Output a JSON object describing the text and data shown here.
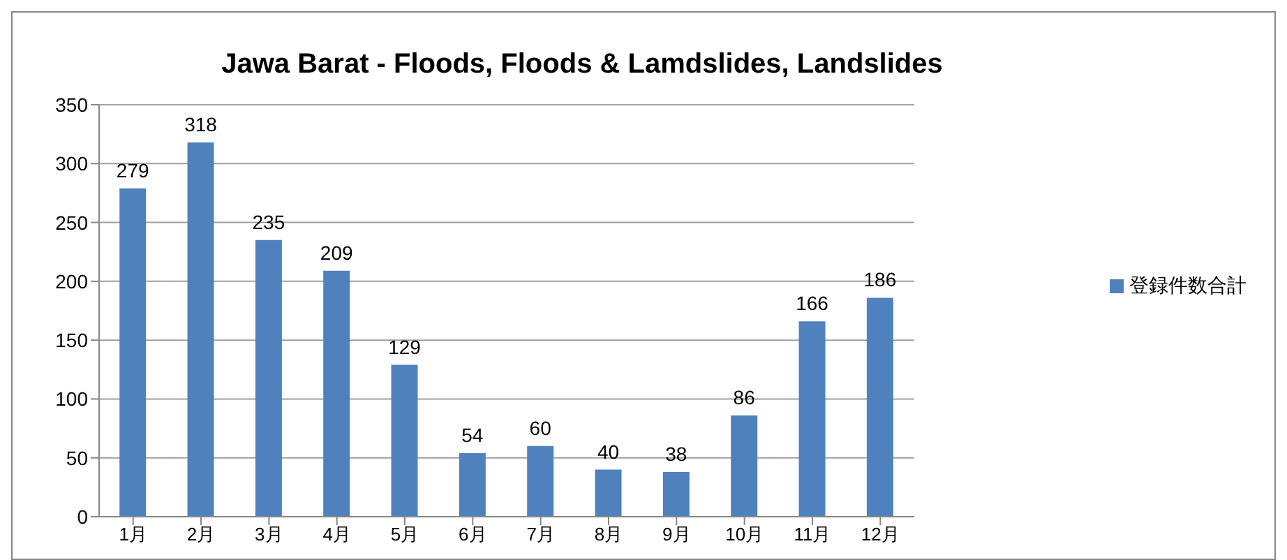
{
  "chart_data": {
    "type": "bar",
    "title": "Jawa Barat  - Floods, Floods & Lamdslides, Landslides",
    "categories": [
      "1月",
      "2月",
      "3月",
      "4月",
      "5月",
      "6月",
      "7月",
      "8月",
      "9月",
      "10月",
      "11月",
      "12月"
    ],
    "series": [
      {
        "name": "登録件数合計",
        "color": "#4f81bd",
        "values": [
          279,
          318,
          235,
          209,
          129,
          54,
          60,
          40,
          38,
          86,
          166,
          186
        ]
      }
    ],
    "ylim": [
      0,
      350
    ],
    "yticks": [
      0,
      50,
      100,
      150,
      200,
      250,
      300,
      350
    ],
    "grid": "y",
    "legend": "right",
    "data_labels": true
  }
}
